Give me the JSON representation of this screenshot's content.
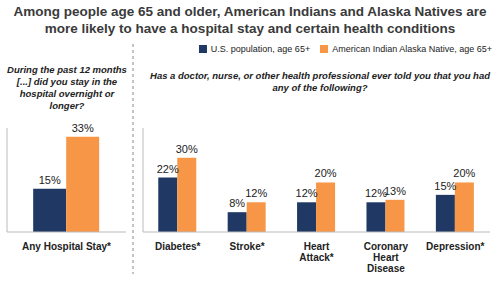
{
  "title": "Among people age 65 and older, American Indians and Alaska Natives are more likely to have a hospital stay and certain health conditions",
  "chart_data": [
    {
      "type": "bar",
      "subtitle": "During the past 12 months [...] did you stay in the hospital overnight or longer?",
      "categories": [
        "Any Hospital Stay*"
      ],
      "series": [
        {
          "name": "U.S. population, age 65+",
          "color": "#1f3864",
          "values": [
            15
          ],
          "value_labels": [
            "15%"
          ]
        },
        {
          "name": "American Indian Alaska Native, age 65+",
          "color": "#f79646",
          "values": [
            33
          ],
          "value_labels": [
            "33%"
          ]
        }
      ],
      "ylim": [
        0,
        36
      ],
      "grid": false,
      "tick_labels": false,
      "data_labels": true
    },
    {
      "type": "bar",
      "subtitle": "Has a doctor, nurse, or other health professional ever told you that you had any of the following?",
      "categories": [
        "Diabetes*",
        "Stroke*",
        "Heart Attack*",
        "Coronary Heart Disease",
        "Depression*"
      ],
      "series": [
        {
          "name": "U.S. population, age 65+",
          "color": "#1f3864",
          "values": [
            22,
            8,
            12,
            12,
            15
          ],
          "value_labels": [
            "22%",
            "8%",
            "12%",
            "12%",
            "15%"
          ]
        },
        {
          "name": "American Indian Alaska Native, age 65+",
          "color": "#f79646",
          "values": [
            30,
            12,
            20,
            13,
            20
          ],
          "value_labels": [
            "30%",
            "12%",
            "20%",
            "13%",
            "20%"
          ]
        }
      ],
      "ylim": [
        0,
        42
      ],
      "grid": false,
      "tick_labels": false,
      "data_labels": true,
      "legend": "top right"
    }
  ]
}
